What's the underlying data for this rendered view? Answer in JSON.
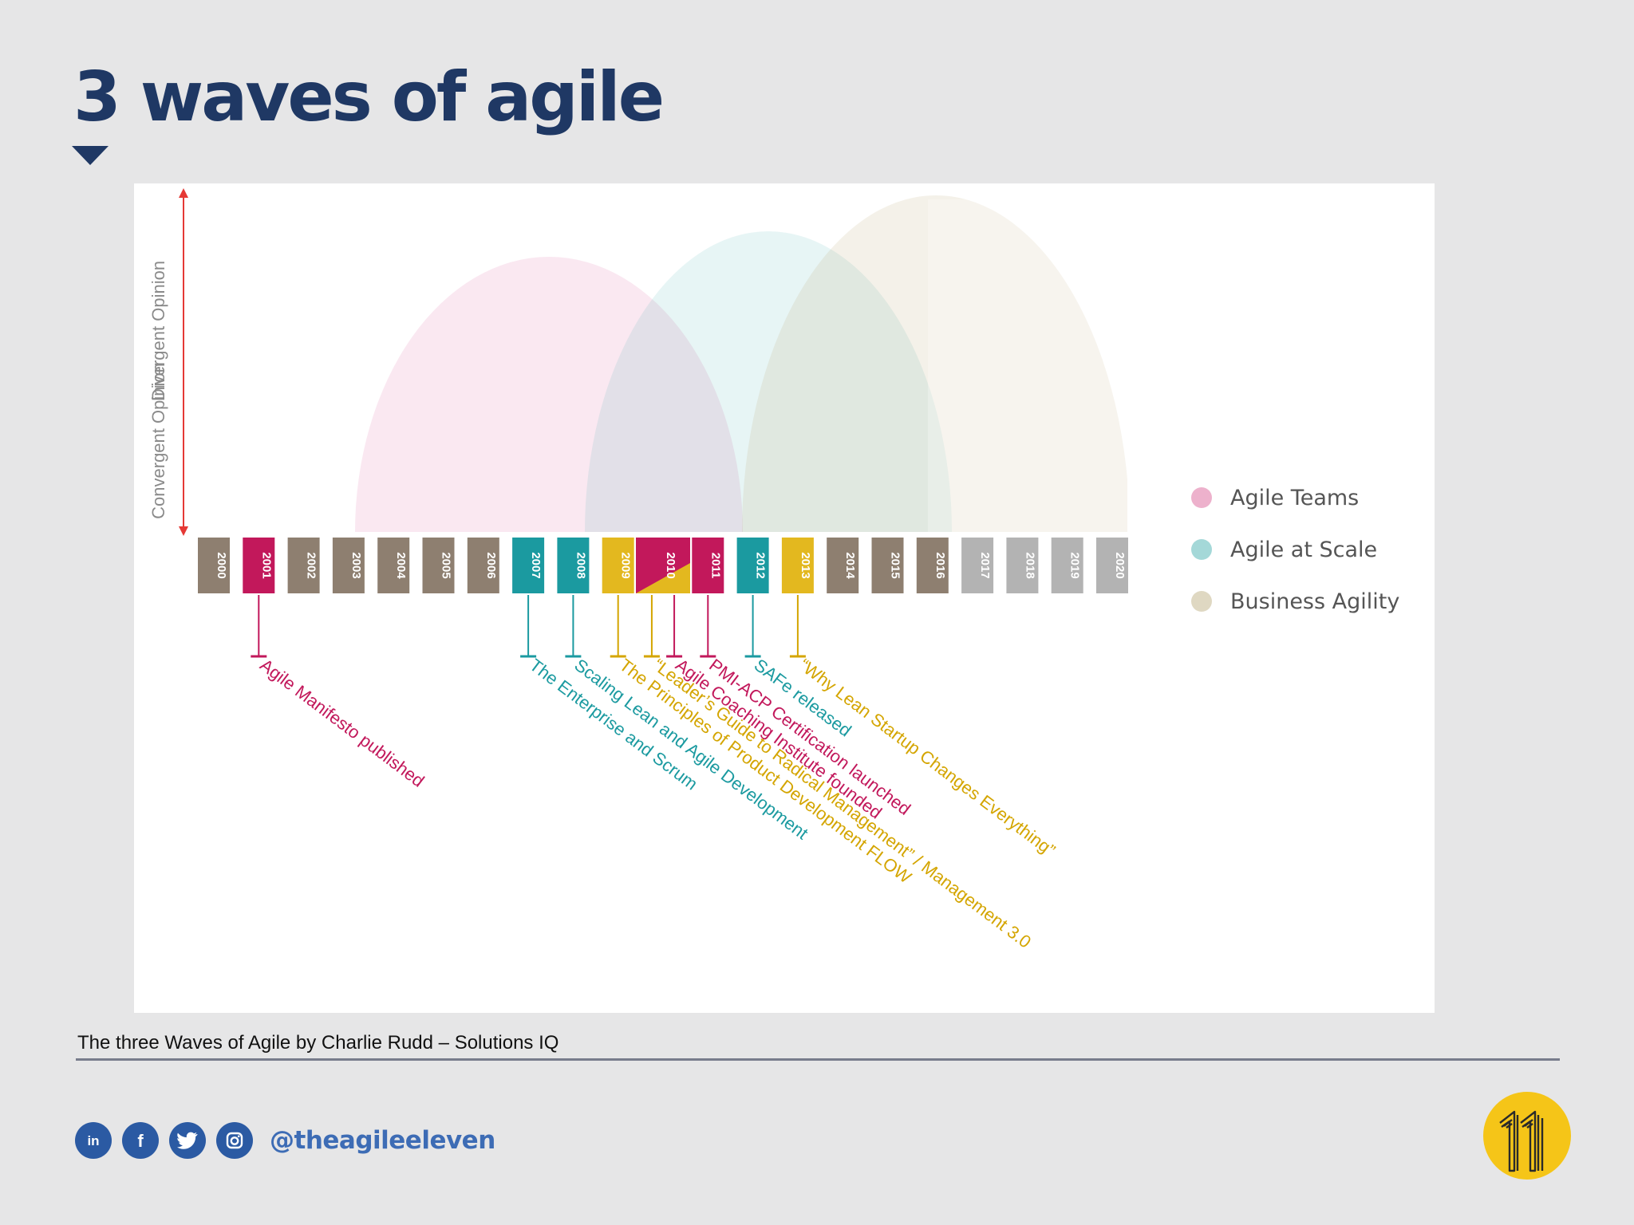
{
  "slide": {
    "title": "3 waves of agile",
    "caption": "The three Waves of Agile by Charlie Rudd – Solutions IQ",
    "handle": "@theagileeleven",
    "social": [
      {
        "icon": "linkedin-icon",
        "glyph": "in"
      },
      {
        "icon": "facebook-icon",
        "glyph": "f"
      },
      {
        "icon": "twitter-icon",
        "glyph": "bird"
      },
      {
        "icon": "instagram-icon",
        "glyph": "camera"
      }
    ],
    "brand_logo": "agile-eleven-logo",
    "brand_color": "#f5c518",
    "title_color": "#1f3864"
  },
  "diagram": {
    "axis": {
      "top_label": "Divergent Opinion",
      "bottom_label": "Convergent Opinion"
    },
    "waves": [
      {
        "name": "Agile Teams",
        "color": "#d6518f"
      },
      {
        "name": "Agile at Scale",
        "color": "#36a9a9"
      },
      {
        "name": "Business Agility",
        "color": "#b8a878"
      }
    ],
    "years": [
      {
        "label": "2000",
        "color": "#8e7f70"
      },
      {
        "label": "2001",
        "color": "#c2185b"
      },
      {
        "label": "2002",
        "color": "#8e7f70"
      },
      {
        "label": "2003",
        "color": "#8e7f70"
      },
      {
        "label": "2004",
        "color": "#8e7f70"
      },
      {
        "label": "2005",
        "color": "#8e7f70"
      },
      {
        "label": "2006",
        "color": "#8e7f70"
      },
      {
        "label": "2007",
        "color": "#1b9aa0"
      },
      {
        "label": "2008",
        "color": "#1b9aa0"
      },
      {
        "label": "2009",
        "color": "#e3b81f"
      },
      {
        "label": "2010",
        "color": "#c2185b",
        "secondary_color": "#e3b81f"
      },
      {
        "label": "2011",
        "color": "#c2185b"
      },
      {
        "label": "2012",
        "color": "#1b9aa0"
      },
      {
        "label": "2013",
        "color": "#e3b81f"
      },
      {
        "label": "2014",
        "color": "#8e7f70"
      },
      {
        "label": "2015",
        "color": "#8e7f70"
      },
      {
        "label": "2016",
        "color": "#8e7f70"
      },
      {
        "label": "2017",
        "color": "#b3b3b3"
      },
      {
        "label": "2018",
        "color": "#b3b3b3"
      },
      {
        "label": "2019",
        "color": "#b3b3b3"
      },
      {
        "label": "2020",
        "color": "#b3b3b3"
      }
    ],
    "events": [
      {
        "year": 2001,
        "text": "Agile Manifesto published",
        "color": "#c2185b"
      },
      {
        "year": 2007,
        "text": "The Enterprise and Scrum",
        "color": "#1b9aa0"
      },
      {
        "year": 2008,
        "text": "Scaling Lean and Agile Development",
        "color": "#1b9aa0"
      },
      {
        "year": 2009,
        "text": "The Principles of Product Development FLOW",
        "color": "#d4a500"
      },
      {
        "year": 2009.75,
        "text": "“Leader’s Guide to Radical Management” / Management 3.0",
        "color": "#d4a500"
      },
      {
        "year": 2010.25,
        "text": "Agile Coaching Institute founded",
        "color": "#c2185b"
      },
      {
        "year": 2011,
        "text": "PMI-ACP Certification launched",
        "color": "#c2185b"
      },
      {
        "year": 2012,
        "text": "SAFe released",
        "color": "#1b9aa0"
      },
      {
        "year": 2013,
        "text": "“Why Lean Startup Changes Everything”",
        "color": "#d4a500"
      }
    ]
  }
}
